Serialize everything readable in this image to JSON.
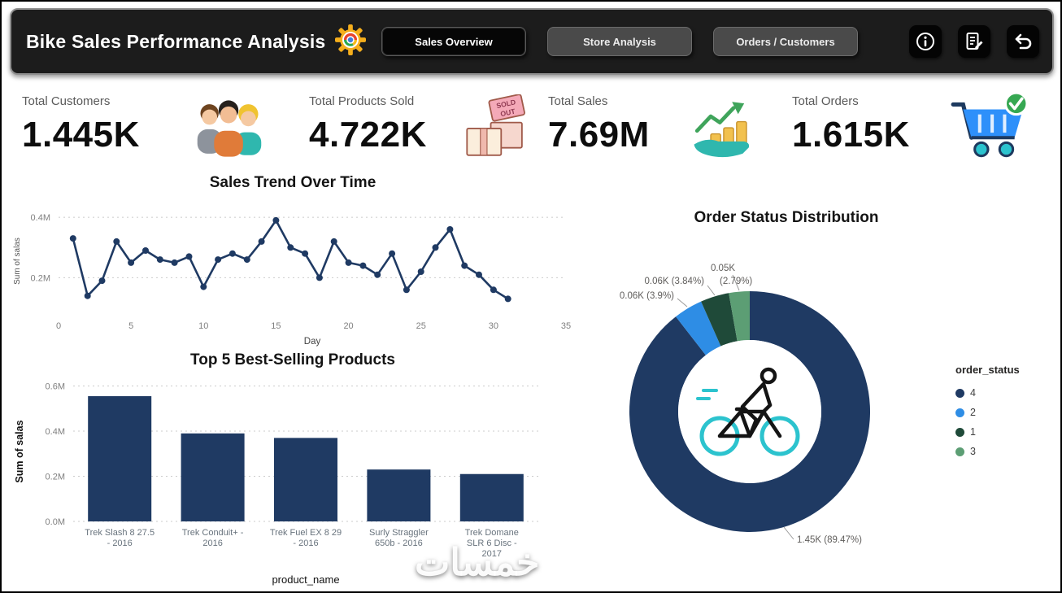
{
  "header": {
    "title": "Bike Sales Performance Analysis",
    "tabs": [
      {
        "label": "Sales Overview",
        "active": true
      },
      {
        "label": "Store Analysis",
        "active": false
      },
      {
        "label": "Orders / Customers",
        "active": false
      }
    ],
    "actions": [
      {
        "name": "info-button",
        "icon": "info-icon"
      },
      {
        "name": "data-edit-button",
        "icon": "form-edit-icon"
      },
      {
        "name": "reset-button",
        "icon": "undo-arrow-icon"
      }
    ]
  },
  "kpis": [
    {
      "label": "Total Customers",
      "value": "1.445K",
      "icon": "people-group-icon"
    },
    {
      "label": "Total Products Sold",
      "value": "4.722K",
      "icon": "sold-out-boxes-icon",
      "icon_text_lines": [
        "SOLD",
        "OUT"
      ]
    },
    {
      "label": "Total Sales",
      "value": "7.69M",
      "icon": "sales-growth-hand-icon"
    },
    {
      "label": "Total Orders",
      "value": "1.615K",
      "icon": "cart-check-icon"
    }
  ],
  "chart_data": [
    {
      "type": "line",
      "title": "Sales Trend Over Time",
      "xlabel": "Day",
      "ylabel": "Sum of salas",
      "x": [
        1,
        2,
        3,
        4,
        5,
        6,
        7,
        8,
        9,
        10,
        11,
        12,
        13,
        14,
        15,
        16,
        17,
        18,
        19,
        20,
        21,
        22,
        23,
        24,
        25,
        26,
        27,
        28,
        29,
        30,
        31
      ],
      "y": [
        0.33,
        0.14,
        0.19,
        0.32,
        0.25,
        0.29,
        0.26,
        0.25,
        0.27,
        0.17,
        0.26,
        0.28,
        0.26,
        0.32,
        0.39,
        0.3,
        0.28,
        0.2,
        0.32,
        0.25,
        0.24,
        0.21,
        0.28,
        0.16,
        0.22,
        0.3,
        0.36,
        0.24,
        0.21,
        0.16,
        0.13
      ],
      "xlim": [
        0,
        35
      ],
      "ylim": [
        0.08,
        0.43
      ],
      "xticks": [
        0,
        5,
        10,
        15,
        20,
        25,
        30,
        35
      ],
      "yticks": [
        0.2,
        0.4
      ],
      "ytick_suffix": "M",
      "grid": "dotted-horizontal",
      "color": "#1F3A63"
    },
    {
      "type": "bar",
      "title": "Top 5 Best-Selling Products",
      "xlabel": "product_name",
      "ylabel": "Sum of salas",
      "categories": [
        "Trek Slash 8 27.5 - 2016",
        "Trek Conduit+ - 2016",
        "Trek Fuel EX 8 29 - 2016",
        "Surly Straggler 650b - 2016",
        "Trek Domane SLR 6 Disc - 2017"
      ],
      "category_lines": [
        [
          "Trek Slash 8 27.5",
          "- 2016"
        ],
        [
          "Trek Conduit+ -",
          "2016"
        ],
        [
          "Trek Fuel EX 8 29",
          "- 2016"
        ],
        [
          "Surly Straggler",
          "650b - 2016"
        ],
        [
          "Trek Domane",
          "SLR 6 Disc -",
          "2017"
        ]
      ],
      "values": [
        0.555,
        0.39,
        0.37,
        0.23,
        0.21
      ],
      "ylim": [
        0,
        0.62
      ],
      "yticks": [
        0,
        0.2,
        0.4,
        0.6
      ],
      "ytick_suffix": "M",
      "grid": "dotted-horizontal",
      "color": "#1F3A63"
    },
    {
      "type": "donut",
      "title": "Order Status Distribution",
      "legend_title": "order_status",
      "legend_position": "right",
      "center_icon": "cyclist-icon",
      "slices": [
        {
          "status": "4",
          "value_k": 1.45,
          "pct": 89.47,
          "label": "1.45K (89.47%)",
          "color": "#1F3A63"
        },
        {
          "status": "2",
          "value_k": 0.06,
          "pct": 3.9,
          "label": "0.06K (3.9%)",
          "color": "#2E8DE5"
        },
        {
          "status": "1",
          "value_k": 0.06,
          "pct": 3.84,
          "label": "0.06K (3.84%)",
          "color": "#1F4A39"
        },
        {
          "status": "3",
          "value_k": 0.05,
          "pct": 2.79,
          "label": "0.05K (2.79%)",
          "label_value": "0.05K",
          "label_pct": "(2.79%)",
          "color": "#5C9E74"
        }
      ]
    }
  ],
  "watermark": "خمسات"
}
